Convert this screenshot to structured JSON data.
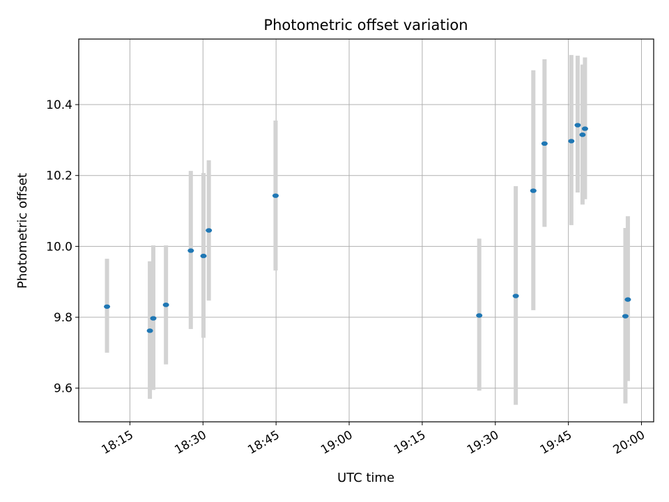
{
  "chart_data": {
    "type": "scatter",
    "title": "Photometric offset variation",
    "xlabel": "UTC time",
    "ylabel": "Photometric offset",
    "x_domain_minutes": [
      1084.5,
      1202.5
    ],
    "x_ticks": [
      {
        "minute": 1095,
        "label": "18:15"
      },
      {
        "minute": 1110,
        "label": "18:30"
      },
      {
        "minute": 1125,
        "label": "18:45"
      },
      {
        "minute": 1140,
        "label": "19:00"
      },
      {
        "minute": 1155,
        "label": "19:15"
      },
      {
        "minute": 1170,
        "label": "19:30"
      },
      {
        "minute": 1185,
        "label": "19:45"
      },
      {
        "minute": 1200,
        "label": "20:00"
      }
    ],
    "ylim": [
      9.505,
      10.585
    ],
    "y_ticks": [
      {
        "value": 9.6,
        "label": "9.6"
      },
      {
        "value": 9.8,
        "label": "9.8"
      },
      {
        "value": 10.0,
        "label": "10.0"
      },
      {
        "value": 10.2,
        "label": "10.2"
      },
      {
        "value": 10.4,
        "label": "10.4"
      }
    ],
    "grid": true,
    "marker_color": "#1f77b4",
    "errorbar_color": "#d3d3d3",
    "points": [
      {
        "time": "18:10:18",
        "minute": 1090.3,
        "y": 9.83,
        "lo": 9.7,
        "hi": 9.965
      },
      {
        "time": "18:19:06",
        "minute": 1099.1,
        "y": 9.762,
        "lo": 9.57,
        "hi": 9.958
      },
      {
        "time": "18:19:48",
        "minute": 1099.8,
        "y": 9.797,
        "lo": 9.595,
        "hi": 10.003
      },
      {
        "time": "18:22:24",
        "minute": 1102.4,
        "y": 9.835,
        "lo": 9.667,
        "hi": 10.003
      },
      {
        "time": "18:27:30",
        "minute": 1107.5,
        "y": 9.988,
        "lo": 9.767,
        "hi": 10.213
      },
      {
        "time": "18:30:06",
        "minute": 1110.1,
        "y": 9.973,
        "lo": 9.742,
        "hi": 10.207
      },
      {
        "time": "18:31:12",
        "minute": 1111.2,
        "y": 10.045,
        "lo": 9.847,
        "hi": 10.243
      },
      {
        "time": "18:44:54",
        "minute": 1124.9,
        "y": 10.143,
        "lo": 9.932,
        "hi": 10.355
      },
      {
        "time": "19:26:42",
        "minute": 1166.7,
        "y": 9.805,
        "lo": 9.593,
        "hi": 10.022
      },
      {
        "time": "19:34:12",
        "minute": 1174.2,
        "y": 9.86,
        "lo": 9.553,
        "hi": 10.17
      },
      {
        "time": "19:37:48",
        "minute": 1177.8,
        "y": 10.157,
        "lo": 9.82,
        "hi": 10.497
      },
      {
        "time": "19:40:06",
        "minute": 1180.1,
        "y": 10.29,
        "lo": 10.055,
        "hi": 10.528
      },
      {
        "time": "19:45:36",
        "minute": 1185.6,
        "y": 10.297,
        "lo": 10.06,
        "hi": 10.54
      },
      {
        "time": "19:46:54",
        "minute": 1186.9,
        "y": 10.342,
        "lo": 10.152,
        "hi": 10.538
      },
      {
        "time": "19:47:54",
        "minute": 1187.9,
        "y": 10.315,
        "lo": 10.118,
        "hi": 10.513
      },
      {
        "time": "19:48:24",
        "minute": 1188.4,
        "y": 10.332,
        "lo": 10.133,
        "hi": 10.533
      },
      {
        "time": "19:56:42",
        "minute": 1196.7,
        "y": 9.803,
        "lo": 9.557,
        "hi": 10.052
      },
      {
        "time": "19:57:12",
        "minute": 1197.2,
        "y": 9.85,
        "lo": 9.62,
        "hi": 10.085
      }
    ]
  }
}
